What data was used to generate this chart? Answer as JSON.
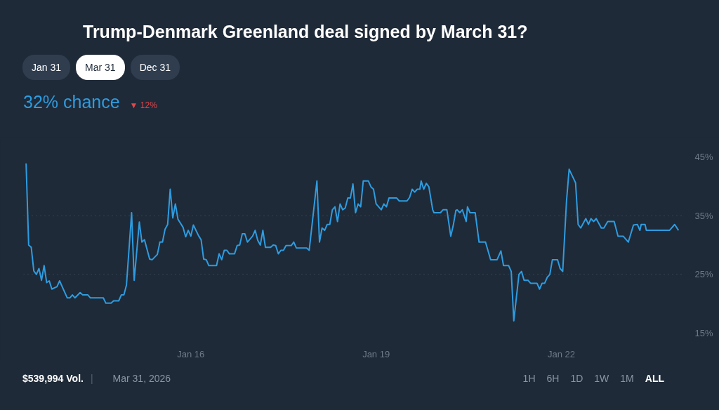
{
  "chart_data": {
    "type": "line",
    "title": "Trump-Denmark Greenland deal signed by March 31?",
    "annotations": [
      "Jan 31",
      "Mar 31",
      "Dec 31",
      "32% chance",
      "▼ 12%",
      "$539,994 Vol.",
      "|",
      "Mar 31, 2026",
      "1H",
      "6H",
      "1D",
      "1W",
      "1M",
      "ALL"
    ],
    "series": [
      {
        "color": "#2e9ce0",
        "x": [
          "2026-01-13T08:00",
          "2026-01-13T09:00",
          "2026-01-13T10:00",
          "2026-01-13T11:00",
          "2026-01-13T12:00",
          "2026-01-13T13:00",
          "2026-01-13T14:00",
          "2026-01-13T15:00",
          "2026-01-13T16:00",
          "2026-01-13T17:00",
          "2026-01-13T18:00",
          "2026-01-13T20:00",
          "2026-01-13T21:00",
          "2026-01-14T00:00",
          "2026-01-14T01:00",
          "2026-01-14T02:00",
          "2026-01-14T03:00",
          "2026-01-14T05:00",
          "2026-01-14T06:00",
          "2026-01-14T08:00",
          "2026-01-14T09:00",
          "2026-01-14T14:00",
          "2026-01-14T15:00",
          "2026-01-14T17:00",
          "2026-01-14T18:00",
          "2026-01-14T20:00",
          "2026-01-14T21:00",
          "2026-01-14T22:00",
          "2026-01-14T23:00",
          "2026-01-15T01:00",
          "2026-01-15T02:00",
          "2026-01-15T04:00",
          "2026-01-15T05:00",
          "2026-01-15T06:00",
          "2026-01-15T08:00",
          "2026-01-15T09:00",
          "2026-01-15T11:00",
          "2026-01-15T12:00",
          "2026-01-15T13:00",
          "2026-01-15T14:00",
          "2026-01-15T15:00",
          "2026-01-15T16:00",
          "2026-01-15T17:00",
          "2026-01-15T18:00",
          "2026-01-15T19:00",
          "2026-01-15T21:00",
          "2026-01-15T22:00",
          "2026-01-15T23:00",
          "2026-01-16T00:00",
          "2026-01-16T01:00",
          "2026-01-16T03:00",
          "2026-01-16T04:00",
          "2026-01-16T05:00",
          "2026-01-16T06:00",
          "2026-01-16T07:00",
          "2026-01-16T10:00",
          "2026-01-16T11:00",
          "2026-01-16T12:00",
          "2026-01-16T13:00",
          "2026-01-16T14:00",
          "2026-01-16T15:00",
          "2026-01-16T17:00",
          "2026-01-16T18:00",
          "2026-01-16T19:00",
          "2026-01-16T20:00",
          "2026-01-16T21:00",
          "2026-01-16T22:00",
          "2026-01-17T00:00",
          "2026-01-17T01:00",
          "2026-01-17T02:00",
          "2026-01-17T03:00",
          "2026-01-17T04:00",
          "2026-01-17T05:00",
          "2026-01-17T07:00",
          "2026-01-17T08:00",
          "2026-01-17T09:00",
          "2026-01-17T10:00",
          "2026-01-17T11:00",
          "2026-01-17T12:00",
          "2026-01-17T13:00",
          "2026-01-17T15:00",
          "2026-01-17T16:00",
          "2026-01-17T17:00",
          "2026-01-17T21:00",
          "2026-01-17T22:00",
          "2026-01-18T01:00",
          "2026-01-18T02:00",
          "2026-01-18T03:00",
          "2026-01-18T04:00",
          "2026-01-18T05:00",
          "2026-01-18T06:00",
          "2026-01-18T07:00",
          "2026-01-18T08:00",
          "2026-01-18T09:00",
          "2026-01-18T10:00",
          "2026-01-18T11:00",
          "2026-01-18T12:00",
          "2026-01-18T13:00",
          "2026-01-18T14:00",
          "2026-01-18T15:00",
          "2026-01-18T16:00",
          "2026-01-18T17:00",
          "2026-01-18T18:00",
          "2026-01-18T19:00",
          "2026-01-18T21:00",
          "2026-01-18T22:00",
          "2026-01-18T23:00",
          "2026-01-19T00:00",
          "2026-01-19T02:00",
          "2026-01-19T03:00",
          "2026-01-19T04:00",
          "2026-01-19T05:00",
          "2026-01-19T08:00",
          "2026-01-19T09:00",
          "2026-01-19T12:00",
          "2026-01-19T13:00",
          "2026-01-19T14:00",
          "2026-01-19T15:00",
          "2026-01-19T16:00",
          "2026-01-19T17:00",
          "2026-01-19T17:30",
          "2026-01-19T18:30",
          "2026-01-19T19:30",
          "2026-01-19T20:30",
          "2026-01-19T22:00",
          "2026-01-19T22:30",
          "2026-01-20T01:00",
          "2026-01-20T02:00",
          "2026-01-20T03:30",
          "2026-01-20T05:00",
          "2026-01-20T06:00",
          "2026-01-20T07:00",
          "2026-01-20T07:30",
          "2026-01-20T08:30",
          "2026-01-20T09:30",
          "2026-01-20T11:00",
          "2026-01-20T11:30",
          "2026-01-20T12:30",
          "2026-01-20T14:30",
          "2026-01-20T16:00",
          "2026-01-20T18:30",
          "2026-01-20T20:30",
          "2026-01-20T23:00",
          "2026-01-21T00:30",
          "2026-01-21T01:30",
          "2026-01-21T03:30",
          "2026-01-21T04:30",
          "2026-01-21T05:30",
          "2026-01-21T07:30",
          "2026-01-21T08:30",
          "2026-01-21T09:30",
          "2026-01-21T11:00",
          "2026-01-21T12:00",
          "2026-01-21T14:30",
          "2026-01-21T15:30",
          "2026-01-21T16:30",
          "2026-01-21T17:30",
          "2026-01-21T18:30",
          "2026-01-21T19:30",
          "2026-01-21T20:30",
          "2026-01-21T22:30",
          "2026-01-21T23:30",
          "2026-01-22T00:30",
          "2026-01-22T02:00",
          "2026-01-22T03:00",
          "2026-01-22T05:30",
          "2026-01-22T06:30",
          "2026-01-22T07:30",
          "2026-01-22T09:30",
          "2026-01-22T10:30",
          "2026-01-22T11:30",
          "2026-01-22T12:30",
          "2026-01-22T13:30",
          "2026-01-22T15:30",
          "2026-01-22T16:30",
          "2026-01-22T18:00",
          "2026-01-22T20:30",
          "2026-01-22T22:00",
          "2026-01-23T00:00",
          "2026-01-23T02:00",
          "2026-01-23T04:00",
          "2026-01-23T05:30",
          "2026-01-23T06:30",
          "2026-01-23T07:00",
          "2026-01-23T08:30",
          "2026-01-23T09:00",
          "2026-01-23T18:00",
          "2026-01-23T20:00",
          "2026-01-23T21:30"
        ],
        "values": [
          43.9,
          30.0,
          29.6,
          25.6,
          25.0,
          26.0,
          24.0,
          26.5,
          23.6,
          23.9,
          22.5,
          22.9,
          23.9,
          21.0,
          21.0,
          21.5,
          21.0,
          21.9,
          21.5,
          21.5,
          21.0,
          21.0,
          20.1,
          20.1,
          20.5,
          20.5,
          21.5,
          21.5,
          23.2,
          35.5,
          24.0,
          33.9,
          30.5,
          30.9,
          27.6,
          27.5,
          28.4,
          30.5,
          30.5,
          32.7,
          33.5,
          39.5,
          34.6,
          37.0,
          34.4,
          33.0,
          31.4,
          32.5,
          31.5,
          33.4,
          31.6,
          30.9,
          27.6,
          27.5,
          26.5,
          26.5,
          28.5,
          27.5,
          29.1,
          29.1,
          28.5,
          28.5,
          29.9,
          30.0,
          31.9,
          31.9,
          30.5,
          31.5,
          32.5,
          30.8,
          30.0,
          32.5,
          29.6,
          29.6,
          30.0,
          29.9,
          28.5,
          29.1,
          29.1,
          29.9,
          29.9,
          30.5,
          29.5,
          29.5,
          29.1,
          40.9,
          30.5,
          32.9,
          32.5,
          33.5,
          33.5,
          36.0,
          36.5,
          34.0,
          37.0,
          36.0,
          36.3,
          38.0,
          38.0,
          40.4,
          35.5,
          37.0,
          36.5,
          40.9,
          40.9,
          39.9,
          39.5,
          37.0,
          36.0,
          37.0,
          36.5,
          38.0,
          38.0,
          37.5,
          37.5,
          38.1,
          39.5,
          39.0,
          39.5,
          39.5,
          40.9,
          39.5,
          40.5,
          39.9,
          36.0,
          35.5,
          35.5,
          36.0,
          36.0,
          31.5,
          33.4,
          35.9,
          36.0,
          35.5,
          36.0,
          34.0,
          36.5,
          35.5,
          35.5,
          30.5,
          30.5,
          27.5,
          27.5,
          29.0,
          26.5,
          26.5,
          25.5,
          17.1,
          25.0,
          25.5,
          24.0,
          24.0,
          23.5,
          23.5,
          22.5,
          23.5,
          23.5,
          24.5,
          25.0,
          27.5,
          27.5,
          26.0,
          25.5,
          37.6,
          42.9,
          40.6,
          33.5,
          32.9,
          34.5,
          33.5,
          34.5,
          34.0,
          34.5,
          32.9,
          32.9,
          34.0,
          34.0,
          31.5,
          31.5,
          30.5,
          33.4,
          33.5,
          32.5,
          33.5,
          33.5,
          32.5,
          32.5,
          33.5,
          32.5
        ]
      }
    ],
    "xlim": [
      "2026-01-13T07:00",
      "2026-01-24T00:00"
    ],
    "xticks": [
      {
        "value": "2026-01-16",
        "label": "Jan 16"
      },
      {
        "value": "2026-01-19",
        "label": "Jan 19"
      },
      {
        "value": "2026-01-22",
        "label": "Jan 22"
      }
    ],
    "ylim": [
      15,
      45
    ],
    "yticks": [
      {
        "value": 15,
        "label": "15%"
      },
      {
        "value": 25,
        "label": "25%"
      },
      {
        "value": 35,
        "label": "35%"
      },
      {
        "value": 45,
        "label": "45%"
      }
    ],
    "grid": "y",
    "marker": "none",
    "line_style": "solid"
  }
}
